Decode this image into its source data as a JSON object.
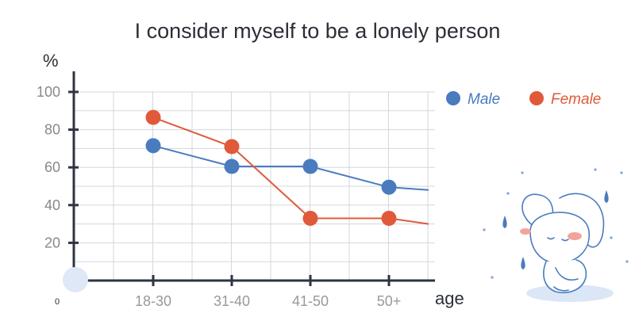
{
  "chart_data": {
    "type": "line",
    "title": "I consider myself to be a lonely person",
    "ylabel": "%",
    "xlabel": "age",
    "origin_label": "0",
    "categories": [
      "18-30",
      "31-40",
      "41-50",
      "50+"
    ],
    "ylim": [
      0,
      100
    ],
    "yticks": [
      "20",
      "40",
      "60",
      "80",
      "100"
    ],
    "grid": true,
    "legend_position": "top-right",
    "series": [
      {
        "name": "Male",
        "color": "#4a7bbf",
        "values": [
          71.5,
          60.5,
          60.5,
          49.5
        ],
        "trail_value": 48
      },
      {
        "name": "Female",
        "color": "#e05a3a",
        "values": [
          86.5,
          71,
          33,
          33
        ],
        "trail_value": 30
      }
    ]
  },
  "decoration": {
    "illustration": "sad-bunny-illustration"
  }
}
